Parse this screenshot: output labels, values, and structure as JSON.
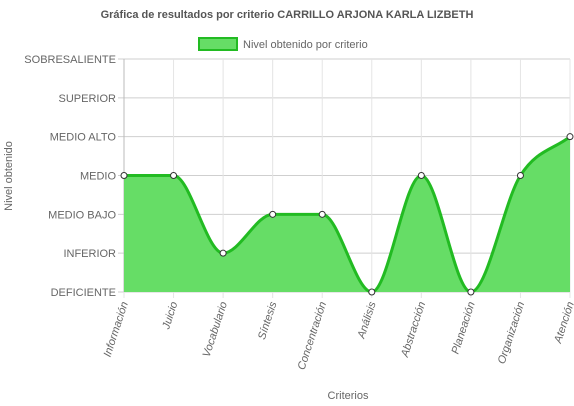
{
  "chart_data": {
    "type": "area",
    "title": "Gráfica de resultados por criterio CARRILLO ARJONA KARLA LIZBETH",
    "xlabel": "Criterios",
    "ylabel": "Nivel obtenido",
    "legend": "top",
    "grid": true,
    "colors": {
      "fill": "#66dd66",
      "stroke": "#22bb22",
      "point": "#ffffff"
    },
    "y_levels": [
      "DEFICIENTE",
      "INFERIOR",
      "MEDIO BAJO",
      "MEDIO",
      "MEDIO ALTO",
      "SUPERIOR",
      "SOBRESALIENTE"
    ],
    "categories": [
      "Información",
      "Juicio",
      "Vocabulario",
      "Síntesis",
      "Concentración",
      "Análisis",
      "Abstracción",
      "Planeación",
      "Organización",
      "Atención"
    ],
    "series": [
      {
        "name": "Nivel obtenido por criterio",
        "values": [
          "MEDIO",
          "MEDIO",
          "INFERIOR",
          "MEDIO BAJO",
          "MEDIO BAJO",
          "DEFICIENTE",
          "MEDIO",
          "DEFICIENTE",
          "MEDIO",
          "MEDIO ALTO"
        ]
      }
    ]
  }
}
